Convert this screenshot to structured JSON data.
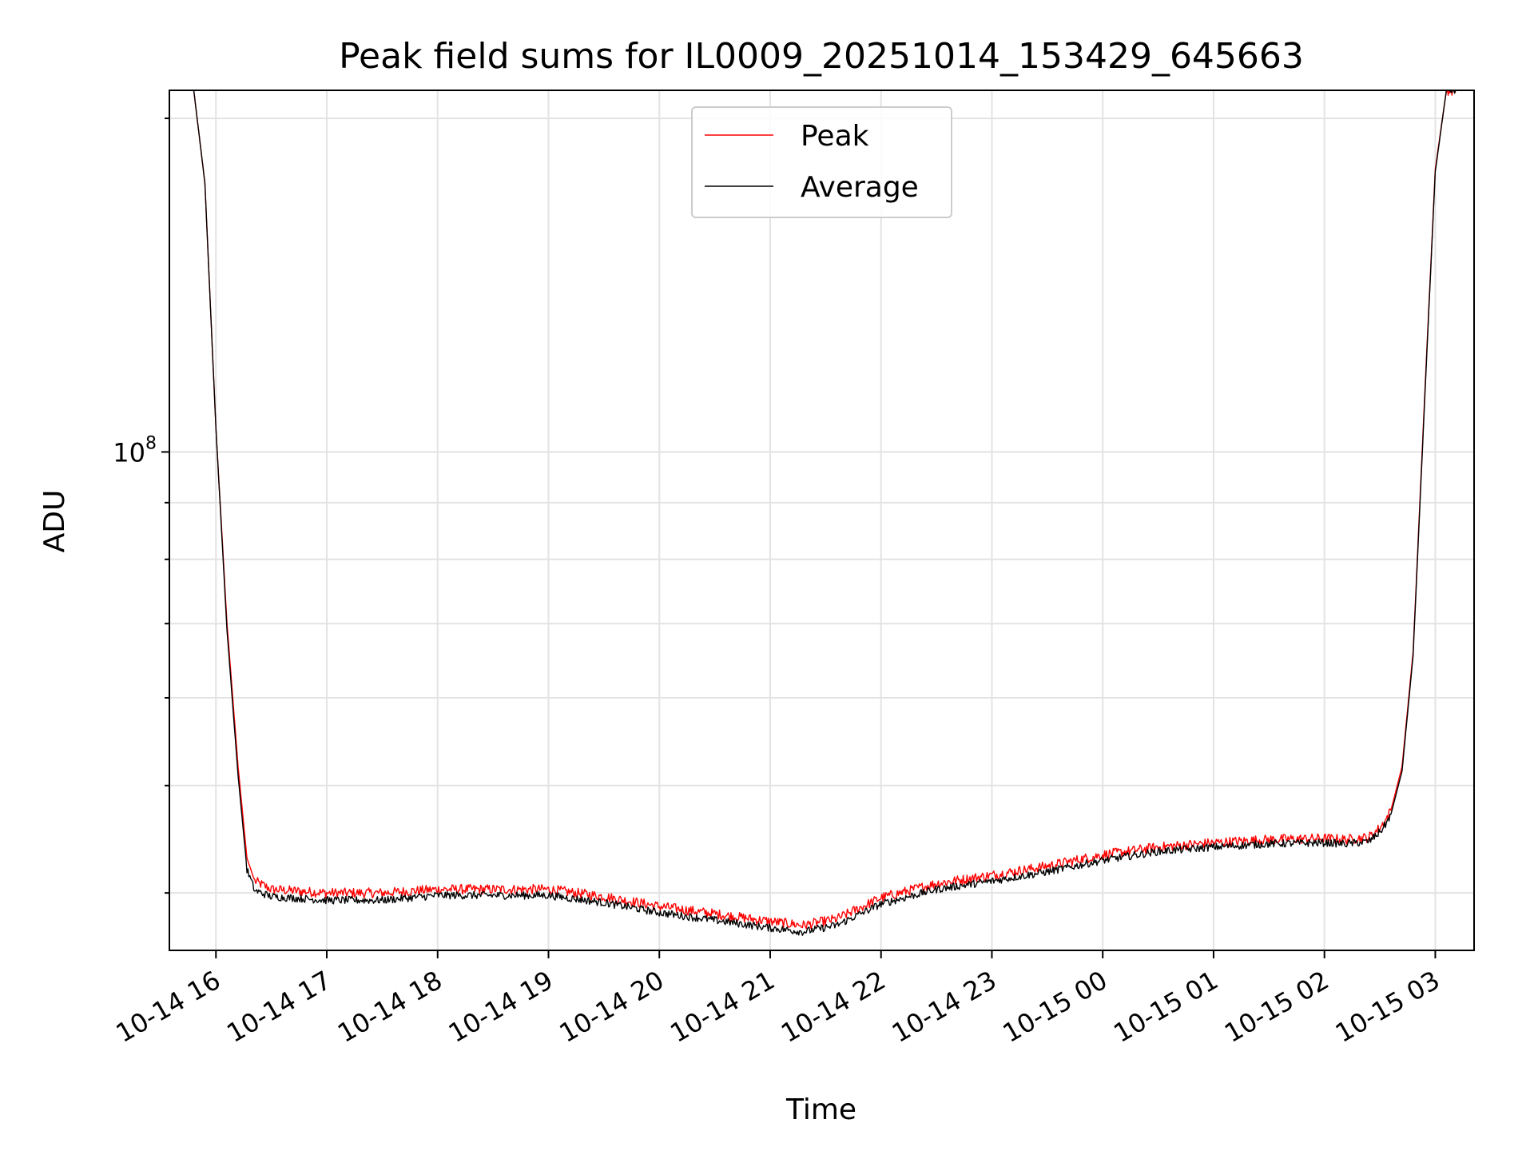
{
  "chart_data": {
    "type": "line",
    "title": "Peak field sums for IL0009_20251014_153429_645663",
    "xlabel": "Time",
    "ylabel": "ADU",
    "yscale": "log",
    "xlim_hours": [
      15.58,
      27.35
    ],
    "ylim": [
      35500000,
      212000000
    ],
    "grid": true,
    "legend_position": "top-center",
    "x_ticks": [
      {
        "value": 16,
        "label": "10-14 16"
      },
      {
        "value": 17,
        "label": "10-14 17"
      },
      {
        "value": 18,
        "label": "10-14 18"
      },
      {
        "value": 19,
        "label": "10-14 19"
      },
      {
        "value": 20,
        "label": "10-14 20"
      },
      {
        "value": 21,
        "label": "10-14 21"
      },
      {
        "value": 22,
        "label": "10-14 22"
      },
      {
        "value": 23,
        "label": "10-14 23"
      },
      {
        "value": 24,
        "label": "10-15 00"
      },
      {
        "value": 25,
        "label": "10-15 01"
      },
      {
        "value": 26,
        "label": "10-15 02"
      },
      {
        "value": 27,
        "label": "10-15 03"
      }
    ],
    "y_major_ticks": [
      {
        "value": 100000000,
        "base": "10",
        "exp": "8"
      }
    ],
    "y_minor_ticks": [
      40000000,
      50000000,
      60000000,
      70000000,
      80000000,
      90000000,
      200000000
    ],
    "x_unit": "hours since 2025-10-14 00:00",
    "series": [
      {
        "name": "Peak",
        "color": "#ff0000",
        "x": [
          15.8,
          15.9,
          16.0,
          16.1,
          16.2,
          16.28,
          16.35,
          16.5,
          17.0,
          17.5,
          18.0,
          18.5,
          19.0,
          19.5,
          20.0,
          20.5,
          21.0,
          21.3,
          21.6,
          22.0,
          22.5,
          23.0,
          23.5,
          24.0,
          24.5,
          25.0,
          25.5,
          26.0,
          26.2,
          26.4,
          26.5,
          26.55,
          26.6,
          26.7,
          26.8,
          26.9,
          27.0,
          27.1,
          27.2
        ],
        "values": [
          212000000,
          175000000,
          105000000,
          70000000,
          52000000,
          43000000,
          41000000,
          40300000,
          40000000,
          40000000,
          40300000,
          40300000,
          40300000,
          39700000,
          38900000,
          38300000,
          37700000,
          37400000,
          37900000,
          39600000,
          40800000,
          41500000,
          42300000,
          43300000,
          44000000,
          44400000,
          44700000,
          44800000,
          44700000,
          44900000,
          45800000,
          46500000,
          47500000,
          52000000,
          66000000,
          110000000,
          180000000,
          212000000,
          212000000
        ]
      },
      {
        "name": "Average",
        "color": "#000000",
        "x": [
          15.8,
          15.9,
          16.0,
          16.1,
          16.2,
          16.28,
          16.35,
          16.5,
          17.0,
          17.5,
          18.0,
          18.5,
          19.0,
          19.5,
          20.0,
          20.5,
          21.0,
          21.3,
          21.6,
          22.0,
          22.5,
          23.0,
          23.5,
          24.0,
          24.5,
          25.0,
          25.5,
          26.0,
          26.2,
          26.4,
          26.5,
          26.55,
          26.6,
          26.7,
          26.8,
          26.9,
          27.0,
          27.1,
          27.2
        ],
        "values": [
          212000000,
          175000000,
          105000000,
          69000000,
          51000000,
          42000000,
          40200000,
          39700000,
          39400000,
          39400000,
          39800000,
          39800000,
          39800000,
          39200000,
          38400000,
          37800000,
          37200000,
          36900000,
          37400000,
          39100000,
          40300000,
          41000000,
          41800000,
          42800000,
          43600000,
          44000000,
          44300000,
          44400000,
          44300000,
          44500000,
          45400000,
          46100000,
          47100000,
          51500000,
          65500000,
          109000000,
          179000000,
          212000000,
          212000000
        ]
      }
    ]
  }
}
